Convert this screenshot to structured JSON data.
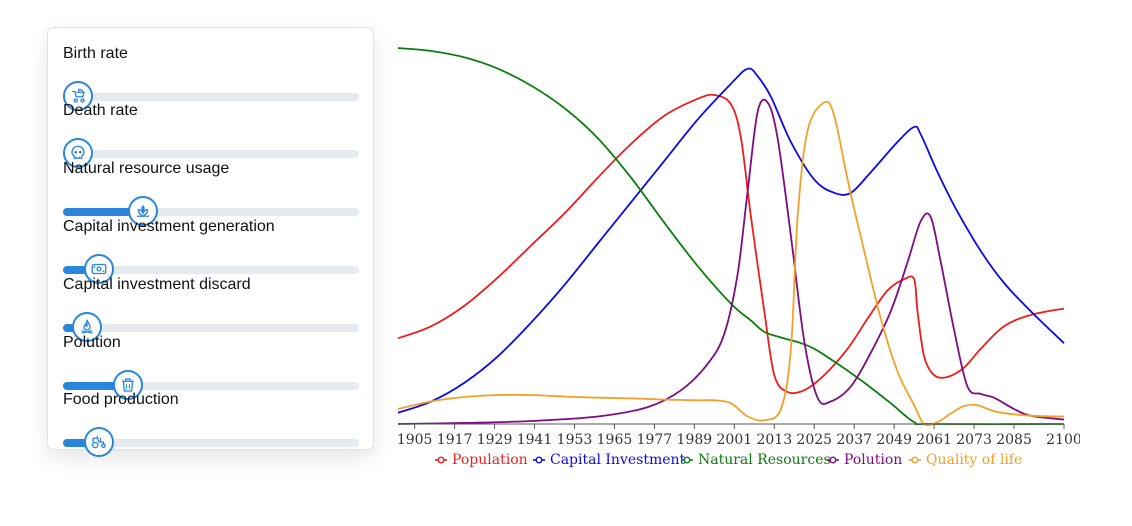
{
  "controls": {
    "sliders": [
      {
        "label": "Birth rate",
        "value": 0.05,
        "icon": "stroller-icon"
      },
      {
        "label": "Death rate",
        "value": 0.05,
        "icon": "skull-icon"
      },
      {
        "label": "Natural resource usage",
        "value": 0.27,
        "icon": "leaf-icon"
      },
      {
        "label": "Capital investment generation",
        "value": 0.12,
        "icon": "banknote-icon"
      },
      {
        "label": "Capital investment discard",
        "value": 0.08,
        "icon": "flame-icon"
      },
      {
        "label": "Polution",
        "value": 0.22,
        "icon": "trash-icon"
      },
      {
        "label": "Food production",
        "value": 0.12,
        "icon": "tractor-icon"
      }
    ]
  },
  "chart_data": {
    "type": "line",
    "title": "",
    "xlabel": "",
    "ylabel": "",
    "xlim": [
      1900,
      2100
    ],
    "ylim": [
      0,
      1
    ],
    "grid": false,
    "legend_position": "bottom",
    "x_ticks": [
      1905,
      1917,
      1929,
      1941,
      1953,
      1965,
      1977,
      1989,
      2001,
      2013,
      2025,
      2037,
      2049,
      2061,
      2073,
      2085,
      2100
    ],
    "series": [
      {
        "name": "Population",
        "color": "#ee1c1c",
        "points": [
          [
            1900,
            0.228
          ],
          [
            1910,
            0.26
          ],
          [
            1920,
            0.315
          ],
          [
            1930,
            0.39
          ],
          [
            1940,
            0.475
          ],
          [
            1950,
            0.56
          ],
          [
            1960,
            0.655
          ],
          [
            1970,
            0.745
          ],
          [
            1980,
            0.82
          ],
          [
            1990,
            0.865
          ],
          [
            1995,
            0.875
          ],
          [
            2000,
            0.85
          ],
          [
            2003,
            0.76
          ],
          [
            2006,
            0.55
          ],
          [
            2010,
            0.3
          ],
          [
            2013,
            0.13
          ],
          [
            2017,
            0.085
          ],
          [
            2022,
            0.09
          ],
          [
            2028,
            0.13
          ],
          [
            2035,
            0.2
          ],
          [
            2041,
            0.28
          ],
          [
            2047,
            0.355
          ],
          [
            2052,
            0.385
          ],
          [
            2055,
            0.385
          ],
          [
            2056,
            0.3
          ],
          [
            2058,
            0.18
          ],
          [
            2061,
            0.13
          ],
          [
            2065,
            0.125
          ],
          [
            2070,
            0.15
          ],
          [
            2075,
            0.2
          ],
          [
            2082,
            0.26
          ],
          [
            2090,
            0.29
          ],
          [
            2100,
            0.307
          ]
        ]
      },
      {
        "name": "Capital Investment",
        "color": "#0a0ae6",
        "points": [
          [
            1900,
            0.03
          ],
          [
            1910,
            0.06
          ],
          [
            1920,
            0.11
          ],
          [
            1930,
            0.18
          ],
          [
            1940,
            0.27
          ],
          [
            1950,
            0.37
          ],
          [
            1960,
            0.48
          ],
          [
            1970,
            0.59
          ],
          [
            1980,
            0.7
          ],
          [
            1990,
            0.81
          ],
          [
            2000,
            0.905
          ],
          [
            2005,
            0.945
          ],
          [
            2008,
            0.925
          ],
          [
            2012,
            0.87
          ],
          [
            2018,
            0.75
          ],
          [
            2025,
            0.65
          ],
          [
            2031,
            0.615
          ],
          [
            2036,
            0.615
          ],
          [
            2042,
            0.67
          ],
          [
            2050,
            0.75
          ],
          [
            2055,
            0.79
          ],
          [
            2057,
            0.77
          ],
          [
            2062,
            0.67
          ],
          [
            2068,
            0.565
          ],
          [
            2075,
            0.46
          ],
          [
            2082,
            0.375
          ],
          [
            2090,
            0.3
          ],
          [
            2100,
            0.215
          ]
        ]
      },
      {
        "name": "Natural Resources",
        "color": "#0c7d0c",
        "points": [
          [
            1900,
            1.0
          ],
          [
            1910,
            0.992
          ],
          [
            1920,
            0.975
          ],
          [
            1930,
            0.945
          ],
          [
            1940,
            0.9
          ],
          [
            1950,
            0.84
          ],
          [
            1960,
            0.76
          ],
          [
            1970,
            0.655
          ],
          [
            1980,
            0.535
          ],
          [
            1990,
            0.42
          ],
          [
            2000,
            0.32
          ],
          [
            2006,
            0.275
          ],
          [
            2010,
            0.245
          ],
          [
            2015,
            0.23
          ],
          [
            2020,
            0.218
          ],
          [
            2025,
            0.2
          ],
          [
            2032,
            0.16
          ],
          [
            2040,
            0.11
          ],
          [
            2048,
            0.055
          ],
          [
            2055,
            0.005
          ],
          [
            2060,
            0.0
          ],
          [
            2100,
            0.0
          ]
        ]
      },
      {
        "name": "Polution",
        "color": "#7d0c84",
        "points": [
          [
            1900,
            0.0
          ],
          [
            1920,
            0.003
          ],
          [
            1940,
            0.008
          ],
          [
            1960,
            0.02
          ],
          [
            1975,
            0.045
          ],
          [
            1985,
            0.09
          ],
          [
            1993,
            0.16
          ],
          [
            1998,
            0.24
          ],
          [
            2002,
            0.4
          ],
          [
            2005,
            0.62
          ],
          [
            2008,
            0.83
          ],
          [
            2011,
            0.855
          ],
          [
            2014,
            0.76
          ],
          [
            2018,
            0.5
          ],
          [
            2022,
            0.22
          ],
          [
            2026,
            0.07
          ],
          [
            2030,
            0.06
          ],
          [
            2036,
            0.1
          ],
          [
            2042,
            0.19
          ],
          [
            2048,
            0.3
          ],
          [
            2053,
            0.43
          ],
          [
            2057,
            0.54
          ],
          [
            2060,
            0.55
          ],
          [
            2063,
            0.43
          ],
          [
            2067,
            0.25
          ],
          [
            2071,
            0.1
          ],
          [
            2075,
            0.08
          ],
          [
            2079,
            0.07
          ],
          [
            2085,
            0.04
          ],
          [
            2090,
            0.022
          ],
          [
            2100,
            0.012
          ]
        ]
      },
      {
        "name": "Quality of life",
        "color": "#f2a02a",
        "points": [
          [
            1900,
            0.04
          ],
          [
            1910,
            0.06
          ],
          [
            1920,
            0.072
          ],
          [
            1930,
            0.077
          ],
          [
            1940,
            0.077
          ],
          [
            1950,
            0.073
          ],
          [
            1960,
            0.07
          ],
          [
            1970,
            0.068
          ],
          [
            1980,
            0.065
          ],
          [
            1990,
            0.063
          ],
          [
            1995,
            0.063
          ],
          [
            2000,
            0.055
          ],
          [
            2005,
            0.02
          ],
          [
            2010,
            0.01
          ],
          [
            2015,
            0.04
          ],
          [
            2018,
            0.2
          ],
          [
            2020,
            0.55
          ],
          [
            2023,
            0.78
          ],
          [
            2028,
            0.855
          ],
          [
            2031,
            0.82
          ],
          [
            2035,
            0.65
          ],
          [
            2040,
            0.46
          ],
          [
            2045,
            0.28
          ],
          [
            2050,
            0.14
          ],
          [
            2055,
            0.05
          ],
          [
            2058,
            0.0
          ],
          [
            2062,
            0.005
          ],
          [
            2066,
            0.028
          ],
          [
            2070,
            0.048
          ],
          [
            2074,
            0.05
          ],
          [
            2080,
            0.032
          ],
          [
            2090,
            0.022
          ],
          [
            2100,
            0.02
          ]
        ]
      }
    ]
  }
}
